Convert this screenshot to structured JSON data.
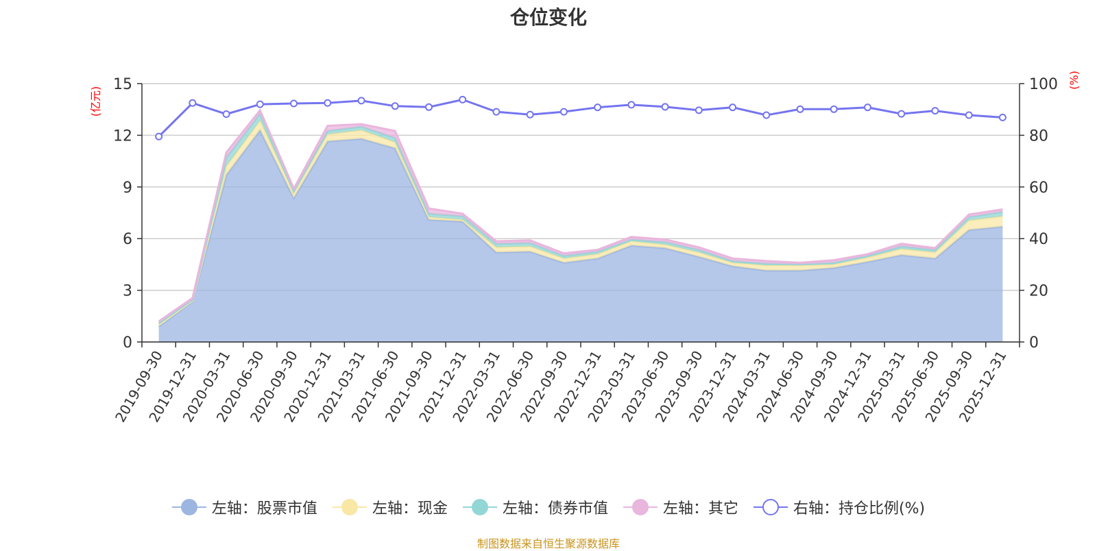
{
  "chart_data": {
    "type": "area",
    "title": "仓位变化",
    "left_axis": {
      "unit_label": "(亿元)",
      "range": [
        0,
        15
      ],
      "ticks": [
        "0",
        "3",
        "6",
        "9",
        "12",
        "15"
      ],
      "tick_values": [
        0,
        3,
        6,
        9,
        12,
        15
      ]
    },
    "right_axis": {
      "unit_label": "(%)",
      "range": [
        0,
        100
      ],
      "ticks": [
        "0",
        "20",
        "40",
        "60",
        "80",
        "100"
      ],
      "tick_values": [
        0,
        20,
        40,
        60,
        80,
        100
      ]
    },
    "grid": true,
    "legend_position": "bottom",
    "categories": [
      "2019-09-30",
      "2019-12-31",
      "2020-03-31",
      "2020-06-30",
      "2020-09-30",
      "2020-12-31",
      "2021-03-31",
      "2021-06-30",
      "2021-09-30",
      "2021-12-31",
      "2022-03-31",
      "2022-06-30",
      "2022-09-30",
      "2022-12-31",
      "2023-03-31",
      "2023-06-30",
      "2023-09-30",
      "2023-12-31",
      "2024-03-31",
      "2024-06-30",
      "2024-09-30",
      "2024-12-31",
      "2025-03-31",
      "2025-06-30",
      "2025-09-30",
      "2025-12-31"
    ],
    "series": [
      {
        "name": "左轴：股票市值",
        "axis": "left",
        "stacked": true,
        "color": "#9cb6e1",
        "values": [
          0.9,
          2.35,
          9.7,
          12.3,
          8.35,
          11.65,
          11.8,
          11.25,
          7.1,
          7.0,
          5.2,
          5.25,
          4.6,
          4.85,
          5.6,
          5.45,
          4.95,
          4.4,
          4.15,
          4.15,
          4.3,
          4.65,
          5.05,
          4.85,
          6.5,
          6.7
        ]
      },
      {
        "name": "左轴：现金",
        "axis": "left",
        "stacked": true,
        "color": "#f9e7a6",
        "values": [
          0.1,
          0.05,
          0.5,
          0.55,
          0.3,
          0.4,
          0.5,
          0.35,
          0.15,
          0.1,
          0.3,
          0.3,
          0.25,
          0.25,
          0.25,
          0.2,
          0.25,
          0.2,
          0.3,
          0.3,
          0.2,
          0.25,
          0.35,
          0.35,
          0.55,
          0.6
        ]
      },
      {
        "name": "左轴：债券市值",
        "axis": "left",
        "stacked": true,
        "color": "#93d6d6",
        "values": [
          0.1,
          0.05,
          0.5,
          0.4,
          0.1,
          0.2,
          0.2,
          0.25,
          0.2,
          0.2,
          0.2,
          0.2,
          0.15,
          0.15,
          0.1,
          0.15,
          0.15,
          0.1,
          0.1,
          0.05,
          0.1,
          0.1,
          0.15,
          0.15,
          0.2,
          0.25
        ]
      },
      {
        "name": "左轴：其它",
        "axis": "left",
        "stacked": true,
        "color": "#e9b6dd",
        "values": [
          0.1,
          0.1,
          0.3,
          0.2,
          0.15,
          0.3,
          0.15,
          0.4,
          0.3,
          0.15,
          0.15,
          0.15,
          0.15,
          0.1,
          0.15,
          0.15,
          0.15,
          0.15,
          0.15,
          0.1,
          0.15,
          0.1,
          0.15,
          0.1,
          0.15,
          0.15
        ]
      },
      {
        "name": "右轴：持仓比例(%)",
        "axis": "right",
        "stacked": false,
        "color": "#7474f0",
        "values": [
          79.5,
          92.5,
          88.2,
          92.0,
          92.3,
          92.5,
          93.4,
          91.3,
          90.9,
          93.8,
          89.1,
          88.0,
          89.1,
          90.8,
          91.8,
          91.0,
          89.7,
          90.8,
          87.8,
          90.1,
          90.1,
          90.8,
          88.3,
          89.5,
          87.8,
          86.9
        ]
      }
    ]
  },
  "footer": {
    "source": "制图数据来自恒生聚源数据库"
  }
}
